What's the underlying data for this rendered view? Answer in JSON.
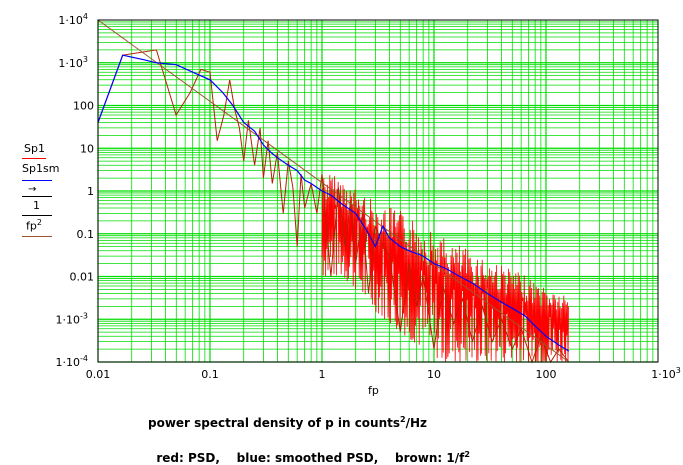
{
  "chart_data": {
    "type": "line",
    "xscale": "log",
    "yscale": "log",
    "xlim": [
      0.01,
      1000
    ],
    "ylim": [
      0.0001,
      10000
    ],
    "xlabel": "fp",
    "ylabel_lines": [
      "Sp1",
      "Sp1sm",
      "1",
      "fp",
      "2"
    ],
    "x_ticks": [
      {
        "v": 0.01,
        "base": "0.01",
        "exp": ""
      },
      {
        "v": 0.1,
        "base": "0.1",
        "exp": ""
      },
      {
        "v": 1,
        "base": "1",
        "exp": ""
      },
      {
        "v": 10,
        "base": "10",
        "exp": ""
      },
      {
        "v": 100,
        "base": "100",
        "exp": ""
      },
      {
        "v": 1000,
        "base": "1·10",
        "exp": "3"
      }
    ],
    "y_ticks": [
      {
        "v": 10000,
        "base": "1·10",
        "exp": "4"
      },
      {
        "v": 1000,
        "base": "1·10",
        "exp": "3"
      },
      {
        "v": 100,
        "base": "100",
        "exp": ""
      },
      {
        "v": 10,
        "base": "10",
        "exp": ""
      },
      {
        "v": 1,
        "base": "1",
        "exp": ""
      },
      {
        "v": 0.1,
        "base": "0.1",
        "exp": ""
      },
      {
        "v": 0.01,
        "base": "0.01",
        "exp": ""
      },
      {
        "v": 0.001,
        "base": "1·10",
        "exp": "-3"
      },
      {
        "v": 0.0001,
        "base": "1·10",
        "exp": "-4"
      }
    ],
    "series": [
      {
        "name": "PSD",
        "color": "#ff0000",
        "x": [
          0.01,
          0.0166,
          0.0332,
          0.0498,
          0.0664,
          0.083,
          0.1,
          0.116,
          0.133,
          0.15,
          0.166,
          0.183,
          0.2,
          0.22,
          0.25,
          0.28,
          0.3,
          0.33,
          0.36,
          0.4,
          0.45,
          0.5,
          0.55,
          0.6,
          0.65,
          0.7,
          0.8,
          0.9,
          1.0,
          1.2,
          1.4,
          1.6,
          1.8,
          2.0,
          2.3,
          2.6,
          3.0,
          3.5,
          4.0,
          5.0,
          6.0,
          7.0,
          8.0,
          10,
          12,
          15,
          18,
          22,
          27,
          33,
          40,
          50,
          60,
          75,
          90,
          110,
          130,
          160
        ],
        "values": [
          40,
          1500,
          2000,
          60,
          200,
          700,
          600,
          15,
          60,
          400,
          80,
          30,
          5,
          45,
          4,
          30,
          2,
          15,
          1.5,
          8,
          0.3,
          5,
          1.2,
          0.05,
          2.5,
          0.4,
          1.5,
          0.3,
          2.5,
          0.01,
          1.2,
          0.05,
          0.6,
          0.02,
          0.3,
          0.004,
          0.15,
          0.05,
          0.03,
          0.0005,
          0.02,
          0.002,
          0.01,
          0.0002,
          0.006,
          0.0008,
          0.003,
          0.0003,
          0.002,
          0.0003,
          0.001,
          0.0002,
          0.0006,
          0.0001,
          0.0004,
          0.0001,
          0.0002,
          0.0001
        ],
        "band": {
          "x": [
            1,
            1.5,
            2,
            3,
            5,
            8,
            12,
            20,
            35,
            60,
            100,
            160
          ],
          "low": [
            0.01,
            0.01,
            0.005,
            0.0015,
            0.0005,
            0.0002,
            0.0001,
            0.0001,
            0.0001,
            0.0001,
            0.0001,
            0.0001
          ],
          "high": [
            8,
            5,
            3,
            1.5,
            1.0,
            0.5,
            0.25,
            0.12,
            0.06,
            0.025,
            0.012,
            0.006
          ]
        }
      },
      {
        "name": "smoothed PSD",
        "color": "#0000ff",
        "x": [
          0.01,
          0.0166,
          0.025,
          0.0332,
          0.05,
          0.07,
          0.1,
          0.13,
          0.16,
          0.2,
          0.25,
          0.3,
          0.35,
          0.4,
          0.5,
          0.6,
          0.7,
          0.8,
          1.0,
          1.2,
          1.5,
          2.0,
          2.5,
          3.0,
          3.5,
          4,
          5,
          6,
          8,
          10,
          13,
          17,
          22,
          30,
          40,
          50,
          65,
          80,
          100,
          130,
          160
        ],
        "values": [
          40,
          1500,
          1200,
          1000,
          900,
          600,
          400,
          200,
          100,
          40,
          25,
          12,
          8,
          6,
          4,
          3,
          1.8,
          1.5,
          1.0,
          0.8,
          0.5,
          0.3,
          0.12,
          0.05,
          0.15,
          0.08,
          0.05,
          0.04,
          0.03,
          0.02,
          0.015,
          0.01,
          0.007,
          0.004,
          0.0025,
          0.0018,
          0.0012,
          0.0007,
          0.0004,
          0.00025,
          0.00018
        ]
      },
      {
        "name": "1/f^2",
        "color": "#a0522d",
        "x": [
          0.01,
          160
        ],
        "values": [
          10000,
          3.9e-05
        ]
      }
    ]
  },
  "legend_labels": {
    "s1": "Sp1",
    "s2": "Sp1sm",
    "s3_num": "1",
    "s3_den": "fp",
    "s3_exp": "2"
  },
  "caption": {
    "line1_pre": "power spectral density of p in counts",
    "line1_exp": "2",
    "line1_post": "/Hz",
    "line2_pre": "red: PSD,    blue: smoothed PSD,    brown: 1/f",
    "line2_exp": "2"
  },
  "colors": {
    "grid": "#00dd00",
    "frame": "#000000",
    "red": "#ff0000",
    "blue": "#0000ff",
    "brown": "#a0522d"
  }
}
